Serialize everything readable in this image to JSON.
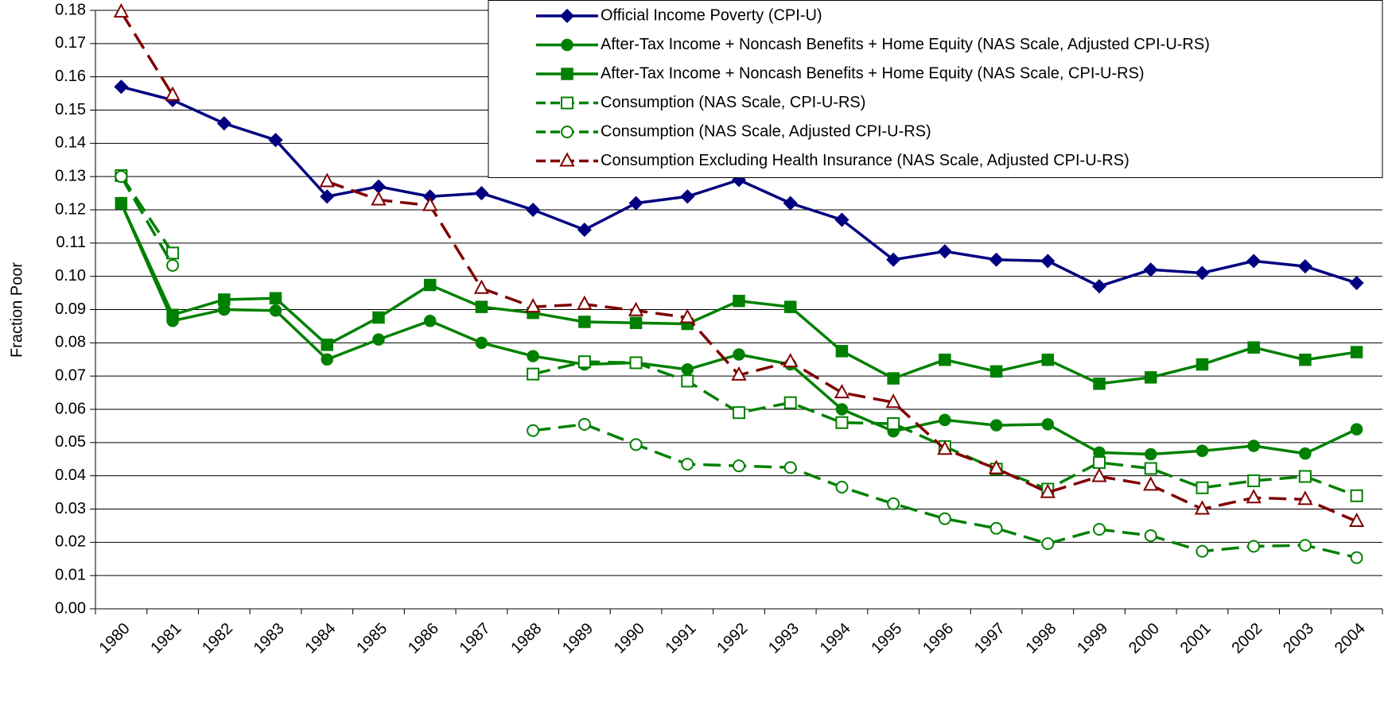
{
  "chart_data": {
    "type": "line",
    "y_label": "Fraction Poor",
    "categories": [
      "1980",
      "1981",
      "1982",
      "1983",
      "1984",
      "1985",
      "1986",
      "1987",
      "1988",
      "1989",
      "1990",
      "1991",
      "1992",
      "1993",
      "1994",
      "1995",
      "1996",
      "1997",
      "1998",
      "1999",
      "2000",
      "2001",
      "2002",
      "2003",
      "2004"
    ],
    "ylim": [
      0,
      0.18
    ],
    "yticks": [
      {
        "value": 0,
        "label": "0.00"
      },
      0.01,
      0.02,
      0.03,
      0.04,
      0.05,
      0.06,
      0.07,
      0.08,
      0.09,
      {
        "value": 0.1,
        "label": "0.10"
      },
      0.11,
      0.12,
      0.13,
      0.14,
      0.15,
      0.16,
      0.17,
      0.18
    ],
    "grid": true,
    "legend": "top-right",
    "series": [
      {
        "name": "Official Income Poverty (CPI-U)",
        "color": "#000080",
        "marker": "diamond",
        "dashed": false,
        "values": [
          0.157,
          0.153,
          0.146,
          0.141,
          0.124,
          0.127,
          0.124,
          0.125,
          0.12,
          0.114,
          0.122,
          0.124,
          0.129,
          0.122,
          0.117,
          0.105,
          0.1075,
          0.105,
          0.1046,
          0.097,
          0.102,
          0.101,
          0.1046,
          0.103,
          0.098
        ]
      },
      {
        "name": "After-Tax Income + Noncash Benefits + Home Equity (NAS Scale, Adjusted CPI-U-RS)",
        "color": "#008000",
        "marker": "circle-filled",
        "dashed": false,
        "values": [
          0.122,
          0.0866,
          0.09,
          0.0897,
          0.075,
          0.081,
          0.0866,
          0.08,
          0.076,
          0.0735,
          0.074,
          0.072,
          0.0765,
          0.0735,
          0.06,
          0.0534,
          0.0568,
          0.0552,
          0.0555,
          0.047,
          0.0465,
          0.0475,
          0.049,
          0.0467,
          0.054
        ]
      },
      {
        "name": "After-Tax Income + Noncash Benefits + Home Equity (NAS Scale, CPI-U-RS)",
        "color": "#008000",
        "marker": "square-filled",
        "dashed": false,
        "values": [
          0.122,
          0.0884,
          0.093,
          0.0934,
          0.0794,
          0.0876,
          0.0974,
          0.0908,
          0.089,
          0.0863,
          0.086,
          0.0857,
          0.0926,
          0.0908,
          0.0775,
          0.0693,
          0.0749,
          0.0714,
          0.0749,
          0.0677,
          0.0696,
          0.0735,
          0.0786,
          0.0749,
          0.0772
        ]
      },
      {
        "name": "Consumption (NAS Scale, CPI-U-RS)",
        "color": "#008000",
        "marker": "square-open",
        "dashed": true,
        "values": [
          0.1303,
          0.107,
          null,
          null,
          null,
          null,
          null,
          null,
          0.0706,
          0.0743,
          0.074,
          0.0685,
          0.059,
          0.062,
          0.056,
          0.0557,
          0.0488,
          0.042,
          0.036,
          0.044,
          0.0422,
          0.0364,
          0.0385,
          0.0398,
          0.034
        ]
      },
      {
        "name": "Consumption (NAS Scale, Adjusted CPI-U-RS)",
        "color": "#008000",
        "marker": "circle-open",
        "dashed": true,
        "values": [
          0.13,
          0.1033,
          null,
          null,
          null,
          null,
          null,
          null,
          0.0536,
          0.0555,
          0.0494,
          0.0435,
          0.043,
          0.0425,
          0.0366,
          0.0316,
          0.0271,
          0.0242,
          0.0196,
          0.0239,
          0.022,
          0.0173,
          0.0188,
          0.0191,
          0.0154
        ]
      },
      {
        "name": "Consumption Excluding Health Insurance (NAS Scale, Adjusted CPI-U-RS)",
        "color": "#800000",
        "marker": "triangle-open",
        "dashed": true,
        "values": [
          0.1795,
          0.1545,
          null,
          null,
          0.1285,
          0.123,
          0.1213,
          0.0964,
          0.0908,
          0.0916,
          0.0897,
          0.0876,
          0.0703,
          0.0743,
          0.065,
          0.0621,
          0.048,
          0.0422,
          0.035,
          0.0398,
          0.0372,
          0.03,
          0.0334,
          0.0329,
          0.0263
        ]
      }
    ]
  }
}
